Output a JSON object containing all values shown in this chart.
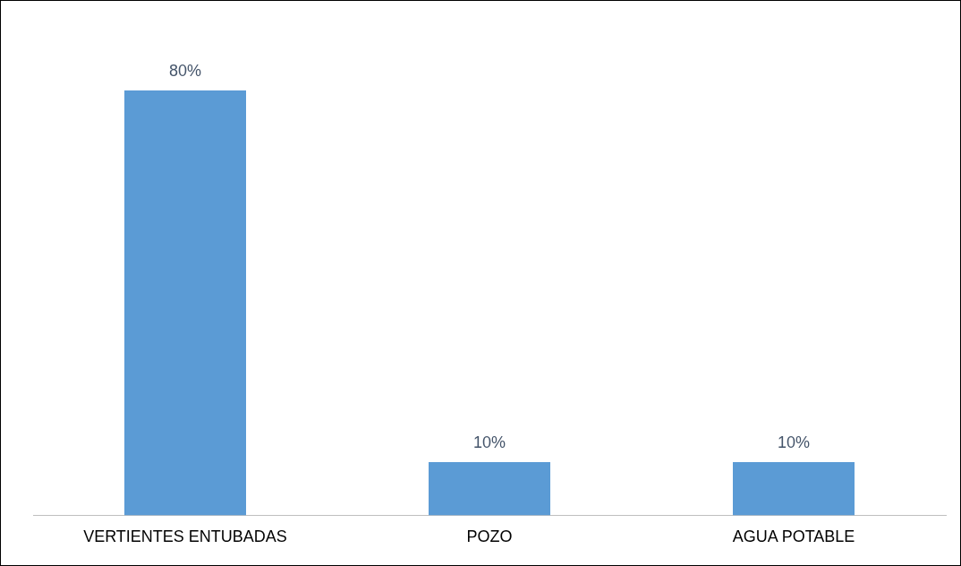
{
  "chart_data": {
    "type": "bar",
    "categories": [
      "VERTIENTES ENTUBADAS",
      "POZO",
      "AGUA POTABLE"
    ],
    "values": [
      80,
      10,
      10
    ],
    "color": "#5b9bd5",
    "value_labels": [
      "80%",
      "10%",
      "10%"
    ],
    "grid": false,
    "legend": false,
    "tick_labels": "x"
  }
}
